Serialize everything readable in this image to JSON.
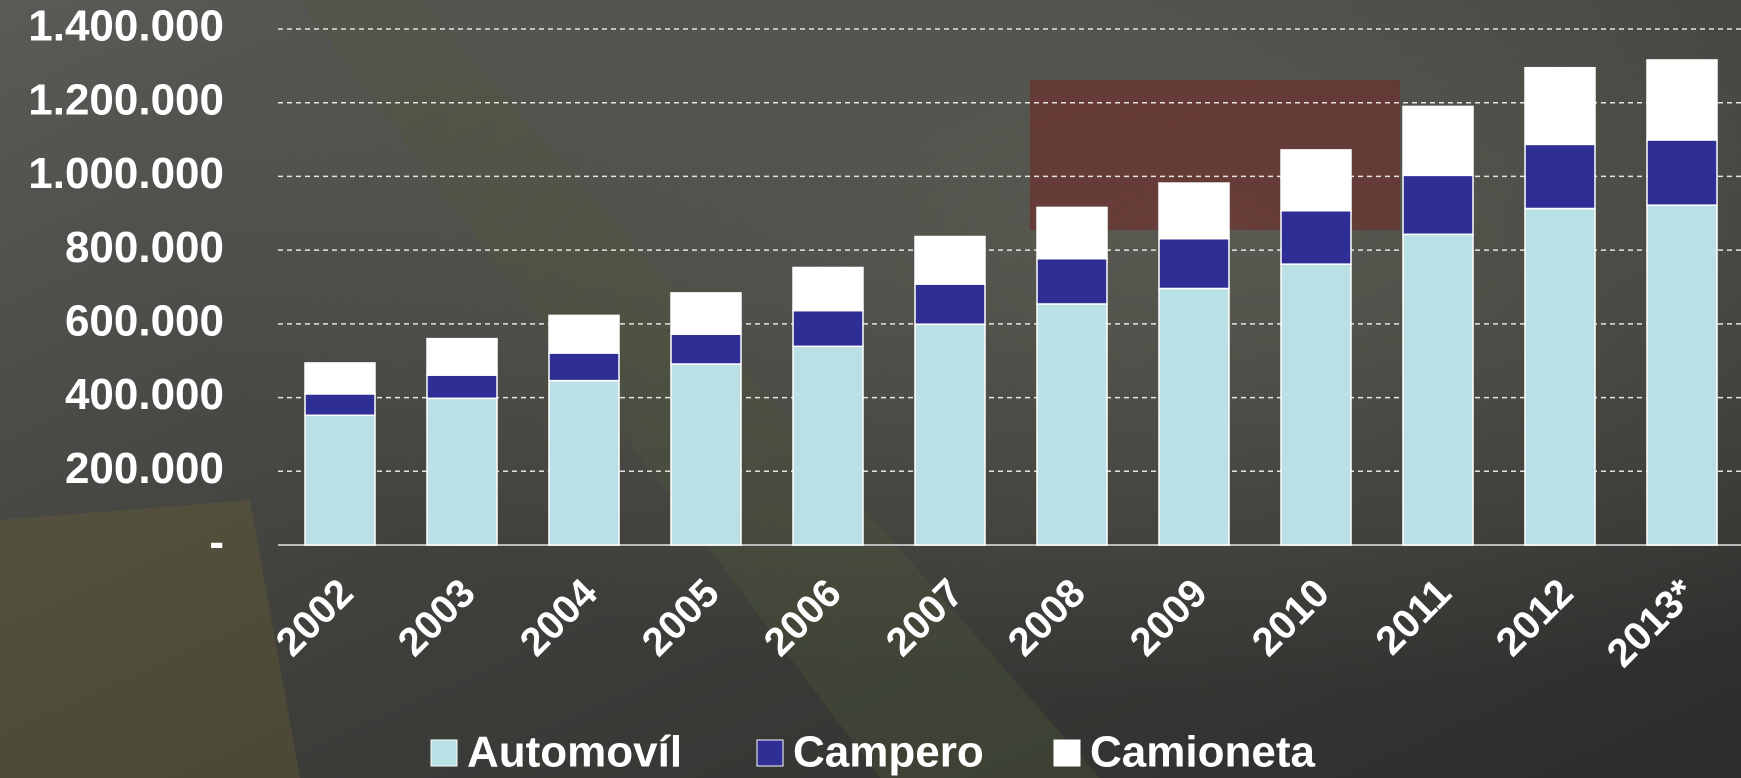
{
  "chart_data": {
    "type": "stacked_bar",
    "categories": [
      "2002",
      "2003",
      "2004",
      "2005",
      "2006",
      "2007",
      "2008",
      "2009",
      "2010",
      "2011",
      "2012",
      "2013*"
    ],
    "series": [
      {
        "name": "Automovíl",
        "color": "#b9e0e4",
        "values": [
          352000,
          398000,
          446000,
          491000,
          539000,
          599000,
          654000,
          696000,
          762000,
          843000,
          913000,
          922000
        ]
      },
      {
        "name": "Campero",
        "color": "#2e2e94",
        "values": [
          58000,
          63000,
          75000,
          81000,
          97000,
          109000,
          123000,
          135000,
          145000,
          160000,
          174000,
          177000
        ]
      },
      {
        "name": "Camioneta",
        "color": "#ffffff",
        "values": [
          84000,
          99000,
          102000,
          112000,
          117000,
          129000,
          139000,
          151000,
          165000,
          187000,
          208000,
          217000
        ]
      }
    ],
    "ylim": [
      0,
      1400000
    ],
    "yticks": [
      {
        "value": 0,
        "label": "-"
      },
      {
        "value": 200000,
        "label": "200.000"
      },
      {
        "value": 400000,
        "label": "400.000"
      },
      {
        "value": 600000,
        "label": "600.000"
      },
      {
        "value": 800000,
        "label": "800.000"
      },
      {
        "value": 1000000,
        "label": "1.000.000"
      },
      {
        "value": 1200000,
        "label": "1.200.000"
      },
      {
        "value": 1400000,
        "label": "1.400.000"
      }
    ],
    "grid": true
  }
}
